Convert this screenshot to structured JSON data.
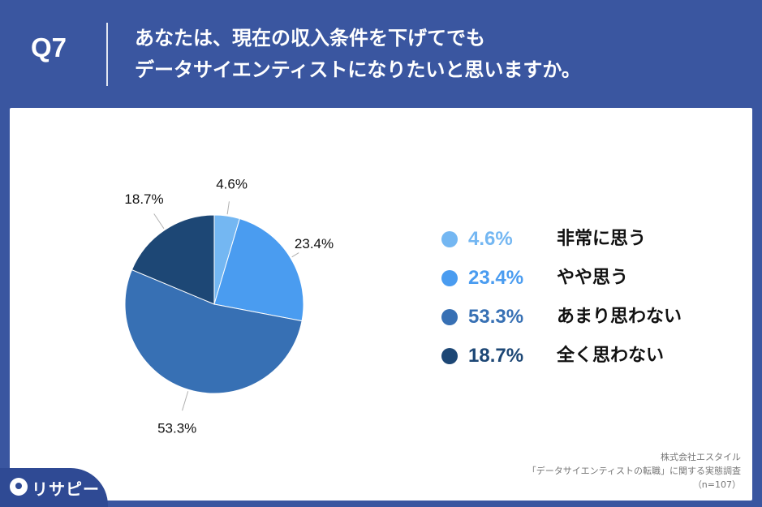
{
  "header": {
    "question_number": "Q7",
    "question_line1": "あなたは、現在の収入条件を下げてでも",
    "question_line2": "データサイエンティストになりたいと思いますか。"
  },
  "chart_data": {
    "type": "pie",
    "categories": [
      "非常に思う",
      "やや思う",
      "あまり思わない",
      "全く思わない"
    ],
    "values": [
      4.6,
      23.4,
      53.3,
      18.7
    ],
    "value_labels": [
      "4.6%",
      "23.4%",
      "53.3%",
      "18.7%"
    ],
    "colors": [
      "#74b7f2",
      "#4a9cf0",
      "#3770b4",
      "#1d4775"
    ],
    "legend_position": "right"
  },
  "source": {
    "line1": "株式会社エスタイル",
    "line2": "「データサイエンティストの転職」に関する実態調査",
    "line3": "（n=107）"
  },
  "logo": {
    "text": "リサピー"
  }
}
